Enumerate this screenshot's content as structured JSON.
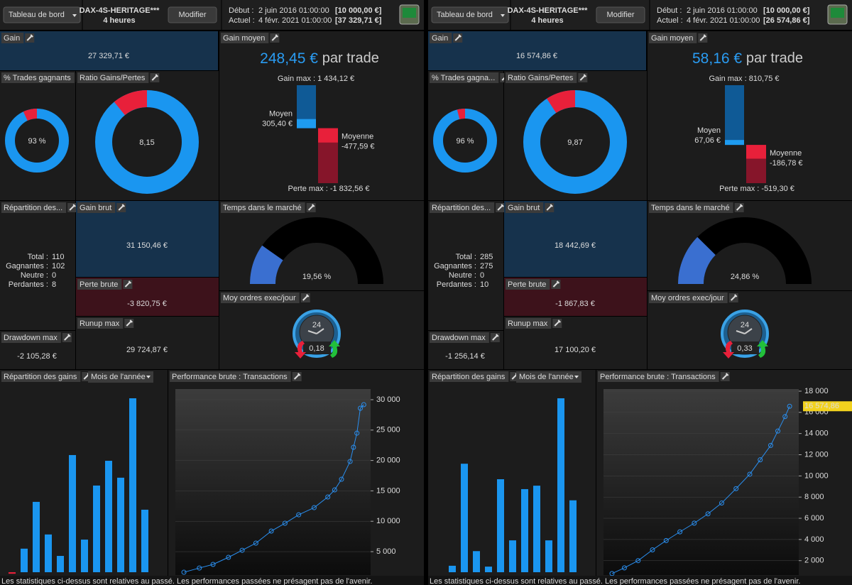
{
  "panes": [
    {
      "toolbar": {
        "menu": "Tableau de bord",
        "strategy": "DAX-4S-HERITAGE***",
        "timeframe": "4 heures",
        "button": "Modifier",
        "start_label": "Début :",
        "start_date": "2 juin 2016 01:00:00",
        "start_capital": "[10 000,00 €]",
        "current_label": "Actuel :",
        "current_date": "4 févr. 2021 01:00:00",
        "current_capital": "[37 329,71 €]"
      },
      "gain": {
        "title": "Gain",
        "value": "27 329,71 €"
      },
      "gain_avg": {
        "title": "Gain moyen",
        "value": "248,45 €",
        "unit": "par trade",
        "max_prefix": "Gain max :",
        "max": {
          "value": 1434.12,
          "label": "1 434,12 €"
        },
        "mean_gain_label": "Moyen",
        "mean_gain": {
          "value": 305.4,
          "label": "305,40 €"
        },
        "mean_loss_label": "Moyenne",
        "mean_loss": {
          "value": -477.59,
          "label": "-477,59 €"
        },
        "loss_max_prefix": "Perte max :",
        "loss_max": {
          "value": -1832.56,
          "label": "-1 832,56 €"
        }
      },
      "win_rate": {
        "title": "% Trades gagnants",
        "value": 93,
        "label": "93 %"
      },
      "ratio": {
        "title": "Ratio Gains/Pertes",
        "value": 8.15,
        "label": "8,15"
      },
      "breakdown": {
        "title": "Répartition des...",
        "rows": [
          {
            "label": "Total :",
            "value": 110
          },
          {
            "label": "Gagnantes :",
            "value": 102
          },
          {
            "label": "Neutre :",
            "value": 0
          },
          {
            "label": "Perdantes :",
            "value": 8
          }
        ]
      },
      "gross_gain": {
        "title": "Gain brut",
        "value": "31 150,46 €"
      },
      "gross_loss": {
        "title": "Perte brute",
        "value": "-3 820,75 €"
      },
      "runup": {
        "title": "Runup max",
        "value": "29 724,87 €"
      },
      "drawdown": {
        "title": "Drawdown max",
        "value": "-2 105,28 €"
      },
      "time_in_market": {
        "title": "Temps dans le marché",
        "value": 19.56,
        "label": "19,56 %"
      },
      "orders": {
        "title": "Moy ordres exec/jour",
        "clock": "24",
        "value": "0,18"
      },
      "monthly": {
        "title": "Répartition des gains",
        "selector": "Mois de l'année",
        "values": [
          -50,
          780,
          2330,
          1250,
          540,
          3880,
          1080,
          2870,
          3690,
          3130,
          5760,
          2070
        ]
      },
      "performance": {
        "title": "Performance brute : Transactions",
        "x": [
          5,
          14,
          22,
          31,
          39,
          47,
          56,
          64,
          72,
          81,
          89,
          93,
          97,
          102,
          104,
          106,
          108,
          110
        ],
        "values": [
          1610,
          2310,
          2900,
          4070,
          5230,
          6400,
          8390,
          9670,
          11070,
          12240,
          14000,
          15160,
          16910,
          19830,
          22170,
          24500,
          28600,
          29180
        ],
        "xlim": [
          0,
          114
        ],
        "ylim": [
          1150,
          31750
        ],
        "yticks": [
          {
            "value": 5000,
            "label": "5 000"
          },
          {
            "value": 10000,
            "label": "10 000"
          },
          {
            "value": 15000,
            "label": "15 000"
          },
          {
            "value": 20000,
            "label": "20 000"
          },
          {
            "value": 25000,
            "label": "25 000"
          },
          {
            "value": 30000,
            "label": "30 000"
          }
        ]
      },
      "footer": "Les statistiques ci-dessus sont relatives au passé. Les performances passées ne présagent pas de l'avenir."
    },
    {
      "toolbar": {
        "menu": "Tableau de bord",
        "strategy": "DAX-4S-HERITAGE***",
        "timeframe": "4 heures",
        "button": "Modifier",
        "start_label": "Début :",
        "start_date": "2 juin 2016 01:00:00",
        "start_capital": "[10 000,00 €]",
        "current_label": "Actuel :",
        "current_date": "4 févr. 2021 01:00:00",
        "current_capital": "[26 574,86 €]"
      },
      "gain": {
        "title": "Gain",
        "value": "16 574,86 €"
      },
      "gain_avg": {
        "title": "Gain moyen",
        "value": "58,16 €",
        "unit": "par trade",
        "max_prefix": "Gain max :",
        "max": {
          "value": 810.75,
          "label": "810,75 €"
        },
        "mean_gain_label": "Moyen",
        "mean_gain": {
          "value": 67.06,
          "label": "67,06 €"
        },
        "mean_loss_label": "Moyenne",
        "mean_loss": {
          "value": -186.78,
          "label": "-186,78 €"
        },
        "loss_max_prefix": "Perte max :",
        "loss_max": {
          "value": -519.3,
          "label": "-519,30 €"
        }
      },
      "win_rate": {
        "title": "% Trades gagna...",
        "value": 96,
        "label": "96 %"
      },
      "ratio": {
        "title": "Ratio Gains/Pertes",
        "value": 9.87,
        "label": "9,87"
      },
      "breakdown": {
        "title": "Répartition des...",
        "rows": [
          {
            "label": "Total :",
            "value": 285
          },
          {
            "label": "Gagnantes :",
            "value": 275
          },
          {
            "label": "Neutre :",
            "value": 0
          },
          {
            "label": "Perdantes :",
            "value": 10
          }
        ]
      },
      "gross_gain": {
        "title": "Gain brut",
        "value": "18 442,69 €"
      },
      "gross_loss": {
        "title": "Perte brute",
        "value": "-1 867,83 €"
      },
      "runup": {
        "title": "Runup max",
        "value": "17 100,20 €"
      },
      "drawdown": {
        "title": "Drawdown max",
        "value": "-1 256,14 €"
      },
      "time_in_market": {
        "title": "Temps dans le marché",
        "value": 24.86,
        "label": "24,86 %"
      },
      "orders": {
        "title": "Moy ordres exec/jour",
        "clock": "24",
        "value": "0,33"
      },
      "monthly": {
        "title": "Répartition des gains",
        "selector": "Mois de l'année",
        "values": [
          150,
          2520,
          490,
          130,
          2160,
          740,
          1930,
          2010,
          740,
          4040,
          1670
        ]
      },
      "performance": {
        "title": "Performance brute : Transactions",
        "x": [
          13,
          32,
          53,
          75,
          96,
          117,
          139,
          160,
          181,
          203,
          224,
          240,
          256,
          267,
          278,
          285
        ],
        "values": [
          780,
          1320,
          2000,
          3020,
          3900,
          4720,
          5540,
          6420,
          7440,
          8800,
          10160,
          11520,
          12880,
          14240,
          15600,
          16575
        ],
        "xlim": [
          0,
          299
        ],
        "ylim": [
          640,
          18200
        ],
        "yticks": [
          {
            "value": 2000,
            "label": "2 000"
          },
          {
            "value": 4000,
            "label": "4 000"
          },
          {
            "value": 6000,
            "label": "6 000"
          },
          {
            "value": 8000,
            "label": "8 000"
          },
          {
            "value": 10000,
            "label": "10 000"
          },
          {
            "value": 12000,
            "label": "12 000"
          },
          {
            "value": 14000,
            "label": "14 000"
          },
          {
            "value": 16000,
            "label": "16 000"
          },
          {
            "value": 18000,
            "label": "18 000"
          }
        ],
        "last_label": "16 574,86"
      },
      "footer": "Les statistiques ci-dessus sont relatives au passé. Les performances passées ne présagent pas de l'avenir."
    }
  ]
}
